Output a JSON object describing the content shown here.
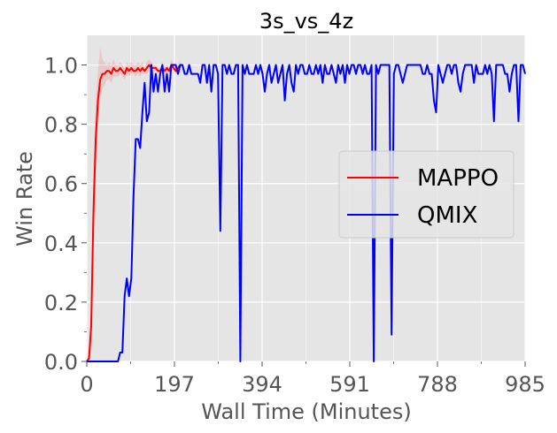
{
  "chart_data": {
    "type": "line",
    "title": "3s_vs_4z",
    "xlabel": "Wall Time (Minutes)",
    "ylabel": "Win Rate",
    "xlim": [
      0,
      985
    ],
    "ylim": [
      0,
      1.1
    ],
    "xticks": [
      0,
      197,
      394,
      591,
      788,
      985
    ],
    "xtick_labels": [
      "0",
      "197",
      "394",
      "591",
      "788",
      "985"
    ],
    "yticks": [
      0.0,
      0.2,
      0.4,
      0.6,
      0.8,
      1.0
    ],
    "ytick_labels": [
      "0.0",
      "0.2",
      "0.4",
      "0.6",
      "0.8",
      "1.0"
    ],
    "grid": true,
    "legend_position": "center-right",
    "series": [
      {
        "name": "MAPPO",
        "color": "#ff0000",
        "x": [
          0,
          5,
          10,
          15,
          20,
          25,
          30,
          35,
          40,
          45,
          50,
          55,
          60,
          65,
          70,
          75,
          80,
          85,
          90,
          95,
          100,
          105,
          110,
          115,
          120,
          125,
          130,
          135,
          140,
          145,
          150,
          155,
          160,
          165,
          170,
          175,
          180,
          185,
          190,
          195,
          200,
          205,
          210
        ],
        "y": [
          0.0,
          0.01,
          0.12,
          0.5,
          0.75,
          0.88,
          0.95,
          0.97,
          0.97,
          0.98,
          0.98,
          0.97,
          0.99,
          0.98,
          0.98,
          0.99,
          0.98,
          0.97,
          0.99,
          0.98,
          0.99,
          0.98,
          0.98,
          0.99,
          0.98,
          0.99,
          0.98,
          0.99,
          1.0,
          0.99,
          0.99,
          0.99,
          0.98,
          0.98,
          0.99,
          0.98,
          0.99,
          0.98,
          1.0,
          0.99,
          0.98,
          0.99,
          1.0
        ],
        "band_lower": [
          0.0,
          0.0,
          0.03,
          0.35,
          0.62,
          0.78,
          0.88,
          0.92,
          0.93,
          0.95,
          0.95,
          0.94,
          0.96,
          0.96,
          0.96,
          0.97,
          0.96,
          0.95,
          0.97,
          0.96,
          0.97,
          0.97,
          0.96,
          0.97,
          0.96,
          0.97,
          0.97,
          0.97,
          0.98,
          0.97,
          0.98,
          0.98,
          0.97,
          0.97,
          0.97,
          0.97,
          0.98,
          0.97,
          0.98,
          0.98,
          0.97,
          0.98,
          0.98
        ],
        "band_upper": [
          0.0,
          0.04,
          0.22,
          0.66,
          0.88,
          0.98,
          1.06,
          1.02,
          1.01,
          1.0,
          1.01,
          1.0,
          1.02,
          1.0,
          1.0,
          1.01,
          1.0,
          0.99,
          1.01,
          1.0,
          1.01,
          1.0,
          1.0,
          1.01,
          1.0,
          1.01,
          0.99,
          1.01,
          1.02,
          1.01,
          1.0,
          1.0,
          0.99,
          0.99,
          1.01,
          0.99,
          1.0,
          0.99,
          1.02,
          1.0,
          0.99,
          1.0,
          1.02
        ]
      },
      {
        "name": "QMIX",
        "color": "#0000ff",
        "x": [
          0,
          60,
          70,
          75,
          80,
          85,
          90,
          95,
          100,
          105,
          110,
          115,
          120,
          125,
          130,
          135,
          140,
          145,
          150,
          155,
          160,
          165,
          170,
          175,
          180,
          185,
          190,
          195,
          200,
          205,
          210,
          215,
          220,
          225,
          230,
          235,
          240,
          250,
          255,
          260,
          265,
          270,
          275,
          280,
          285,
          290,
          295,
          300,
          305,
          310,
          315,
          320,
          325,
          330,
          335,
          340,
          345,
          350,
          355,
          360,
          365,
          370,
          375,
          380,
          385,
          390,
          395,
          400,
          405,
          410,
          415,
          420,
          425,
          430,
          435,
          440,
          445,
          450,
          455,
          460,
          465,
          470,
          475,
          480,
          485,
          490,
          495,
          500,
          505,
          510,
          515,
          520,
          525,
          530,
          535,
          540,
          545,
          550,
          555,
          560,
          565,
          570,
          575,
          580,
          585,
          590,
          595,
          600,
          605,
          610,
          615,
          620,
          625,
          630,
          635,
          640,
          645,
          650,
          655,
          660,
          665,
          670,
          675,
          680,
          685,
          690,
          695,
          700,
          705,
          710,
          715,
          720,
          725,
          730,
          735,
          740,
          745,
          750,
          755,
          760,
          765,
          770,
          775,
          780,
          785,
          790,
          795,
          800,
          805,
          810,
          815,
          820,
          825,
          830,
          835,
          840,
          845,
          850,
          855,
          860,
          865,
          870,
          875,
          880,
          885,
          890,
          895,
          900,
          905,
          910,
          915,
          920,
          925,
          930,
          935,
          940,
          945,
          950,
          955,
          960,
          965,
          970,
          975,
          980,
          985
        ],
        "y": [
          0.0,
          0.0,
          0.0,
          0.03,
          0.03,
          0.22,
          0.28,
          0.22,
          0.28,
          0.56,
          0.75,
          0.75,
          0.72,
          0.84,
          0.94,
          0.81,
          0.84,
          1.0,
          0.91,
          0.97,
          0.91,
          0.97,
          1.0,
          0.91,
          0.97,
          0.91,
          1.0,
          1.0,
          1.0,
          0.97,
          1.0,
          1.0,
          0.97,
          0.97,
          1.0,
          0.97,
          0.97,
          0.97,
          0.94,
          1.0,
          1.0,
          0.94,
          1.0,
          0.91,
          1.0,
          1.0,
          0.97,
          0.97,
          1.0,
          1.0,
          0.97,
          1.0,
          0.97,
          0.97,
          1.0,
          1.0,
          0.94,
          1.0,
          0.97,
          1.0,
          0.97,
          0.97,
          0.97,
          1.0,
          0.97,
          1.0,
          0.97,
          0.91,
          0.97,
          1.0,
          0.94,
          0.97,
          1.0,
          0.94,
          0.97,
          1.0,
          1.0,
          0.97,
          1.0,
          0.94,
          0.91,
          1.0,
          0.97,
          1.0,
          1.0,
          0.97,
          0.97,
          1.0,
          0.97,
          0.97,
          1.0,
          0.97,
          1.0,
          0.94,
          1.0,
          0.97,
          0.97,
          1.0,
          0.97,
          0.94,
          1.0,
          0.97,
          1.0,
          0.94,
          1.0,
          0.97,
          1.0,
          1.0,
          0.97,
          1.0,
          1.0,
          0.97,
          1.0,
          0.97,
          0.97,
          1.0,
          1.0,
          1.0,
          0.97,
          1.0,
          1.0,
          1.0,
          1.0,
          1.0,
          1.0,
          0.97,
          1.0,
          1.0,
          0.97,
          0.94,
          0.97,
          1.0,
          1.0,
          1.0,
          1.0,
          1.0,
          1.0,
          1.0,
          0.97,
          0.97,
          1.0,
          0.97,
          0.97,
          1.0,
          0.97,
          1.0,
          0.97,
          0.94,
          0.97,
          1.0,
          1.0,
          0.97,
          1.0,
          1.0,
          0.94,
          0.91,
          0.97,
          1.0,
          1.0,
          1.0,
          1.0,
          0.94,
          1.0,
          0.97,
          0.97,
          0.97,
          1.0,
          0.97,
          1.0,
          0.97,
          0.97,
          1.0,
          1.0,
          1.0,
          1.0,
          0.97,
          0.97,
          0.91,
          0.97,
          1.0,
          1.0,
          0.97,
          1.0,
          1.0,
          0.97
        ],
        "overrides": [
          {
            "x": 300,
            "y": 0.44
          },
          {
            "x": 345,
            "y": 0.0
          },
          {
            "x": 445,
            "y": 0.88
          },
          {
            "x": 645,
            "y": 0.0
          },
          {
            "x": 685,
            "y": 0.09
          },
          {
            "x": 780,
            "y": 0.88
          },
          {
            "x": 785,
            "y": 0.84
          },
          {
            "x": 915,
            "y": 0.81
          },
          {
            "x": 970,
            "y": 0.81
          }
        ]
      }
    ]
  }
}
